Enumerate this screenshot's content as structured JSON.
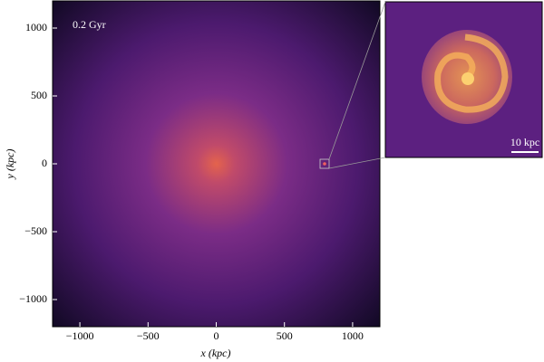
{
  "chart_data": {
    "type": "image",
    "annotation": "0.2 Gyr",
    "x_label": "x (kpc)",
    "y_label": "y (kpc)",
    "xlim": [
      -1200,
      1200
    ],
    "ylim": [
      -1200,
      1200
    ],
    "xticks": [
      {
        "value": -1000,
        "label": "−1000"
      },
      {
        "value": -500,
        "label": "−500"
      },
      0,
      500,
      1000
    ],
    "yticks": [
      {
        "value": -1000,
        "label": "−1000"
      },
      {
        "value": -500,
        "label": "−500"
      },
      0,
      500,
      1000
    ],
    "inset_scale_label": "10 kpc"
  }
}
